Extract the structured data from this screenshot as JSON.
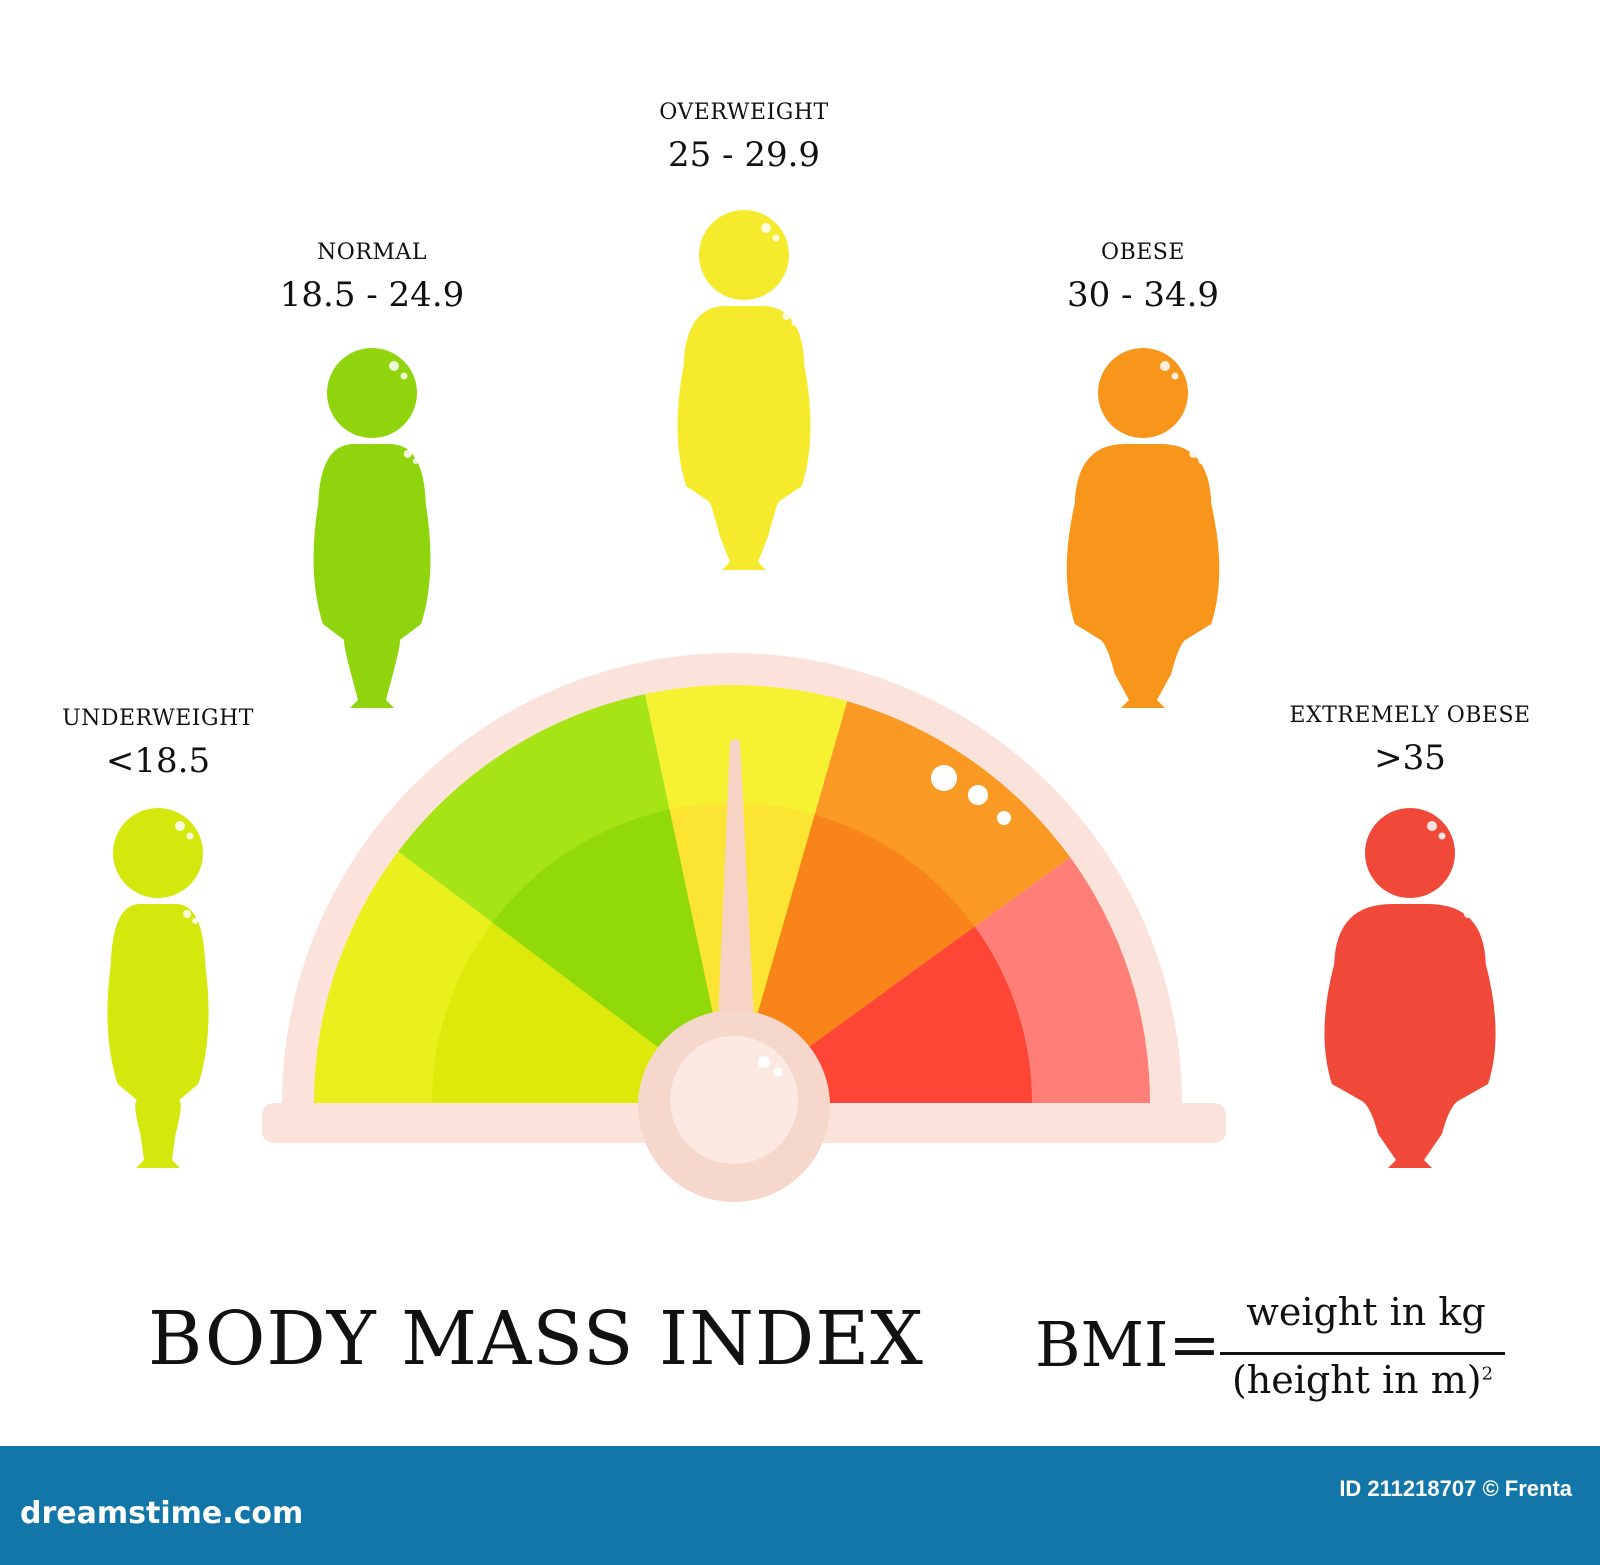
{
  "categories": [
    {
      "id": "underweight",
      "name": "UNDERWEIGHT",
      "range": "<18.5",
      "color": "#d4e80e"
    },
    {
      "id": "normal",
      "name": "NORMAL",
      "range": "18.5 - 24.9",
      "color": "#8fd40c"
    },
    {
      "id": "overweight",
      "name": "OVERWEIGHT",
      "range": "25 - 29.9",
      "color": "#f6ea2c"
    },
    {
      "id": "obese",
      "name": "OBESE",
      "range": "30 - 34.9",
      "color": "#f7961b"
    },
    {
      "id": "extremely_obese",
      "name": "EXTREMELY OBESE",
      "range": ">35",
      "color": "#f0493a"
    }
  ],
  "gauge": {
    "segment_colors": {
      "underweight": {
        "outer": "#eaf01c",
        "inner": "#dce90a"
      },
      "normal": {
        "outer": "#a6e416",
        "inner": "#92d90a"
      },
      "overweight": {
        "outer": "#f6f131",
        "inner": "#fbe432"
      },
      "obese": {
        "outer": "#fa9a25",
        "inner": "#f8841a"
      },
      "extremely_obese": {
        "outer": "#ff7f78",
        "inner": "#fd4636"
      }
    },
    "frame_color": "#fbe3db",
    "needle_points_to": "overweight"
  },
  "title": "BODY MASS INDEX",
  "formula": {
    "lhs": "BMI=",
    "numerator": "weight in kg",
    "denominator": "(height in m)",
    "exponent": "2"
  },
  "footer": {
    "brand": "dreamstime.com",
    "id_text": "ID 211218707 © Frenta",
    "bar_color": "#1277a8"
  }
}
